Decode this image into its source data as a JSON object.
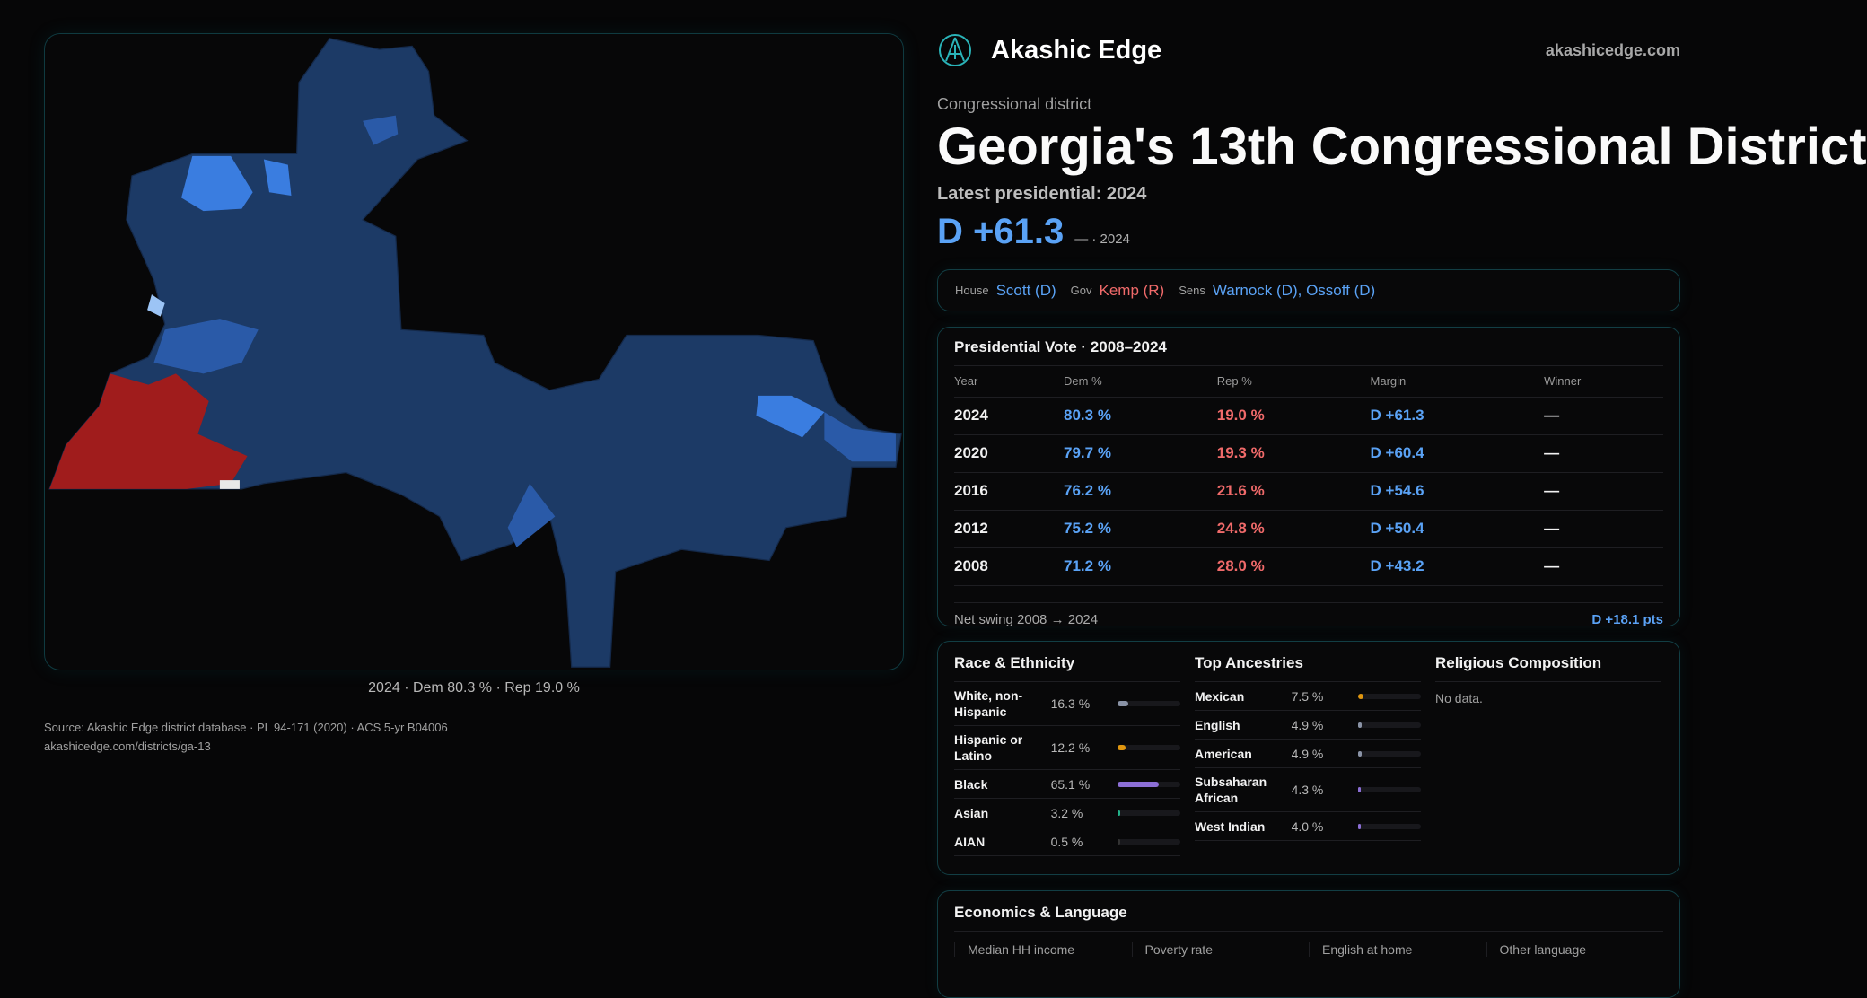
{
  "brand": {
    "name": "Akashic Edge",
    "site": "akashicedge.com",
    "logo_icon": "akashic-logo-icon"
  },
  "header": {
    "kicker": "Congressional district",
    "title": "Georgia's 13th Congressional District",
    "latest": "Latest presidential: 2024",
    "margin": "D +61.3",
    "margin_sub": "— · 2024"
  },
  "officials": [
    {
      "label": "House",
      "value": "Scott (D)",
      "party": "D"
    },
    {
      "label": "Gov",
      "value": "Kemp (R)",
      "party": "R"
    },
    {
      "label": "Sens",
      "value": "Warnock (D), Ossoff (D)",
      "party": "D"
    }
  ],
  "presidential": {
    "title": "Presidential Vote · 2008–2024",
    "headers": [
      "Year",
      "Dem %",
      "Rep %",
      "Margin",
      "Winner"
    ],
    "rows": [
      [
        "2024",
        "80.3 %",
        "19.0 %",
        "D +61.3",
        "—"
      ],
      [
        "2020",
        "79.7 %",
        "19.3 %",
        "D +60.4",
        "—"
      ],
      [
        "2016",
        "76.2 %",
        "21.6 %",
        "D +54.6",
        "—"
      ],
      [
        "2012",
        "75.2 %",
        "24.8 %",
        "D +50.4",
        "—"
      ],
      [
        "2008",
        "71.2 %",
        "28.0 %",
        "D +43.2",
        "—"
      ]
    ],
    "swing_label": "Net swing 2008 → 2024",
    "swing_value": "D +18.1 pts"
  },
  "race": {
    "title": "Race & Ethnicity",
    "items": [
      {
        "name": "White, non-Hispanic",
        "pct": "16.3 %",
        "value": 16.3,
        "color": "#8a93a6"
      },
      {
        "name": "Hispanic or Latino",
        "pct": "12.2 %",
        "value": 12.2,
        "color": "#e0960f"
      },
      {
        "name": "Black",
        "pct": "65.1 %",
        "value": 65.1,
        "color": "#8c6fd6"
      },
      {
        "name": "Asian",
        "pct": "3.2 %",
        "value": 3.2,
        "color": "#22b38a"
      },
      {
        "name": "AIAN",
        "pct": "0.5 %",
        "value": 0.5,
        "color": "#333"
      }
    ]
  },
  "ancestry": {
    "title": "Top Ancestries",
    "items": [
      {
        "name": "Mexican",
        "pct": "7.5 %",
        "value": 7.5,
        "color": "#e0960f"
      },
      {
        "name": "English",
        "pct": "4.9 %",
        "value": 4.9,
        "color": "#8a93a6"
      },
      {
        "name": "American",
        "pct": "4.9 %",
        "value": 4.9,
        "color": "#8a93a6"
      },
      {
        "name": "Subsaharan African",
        "pct": "4.3 %",
        "value": 4.3,
        "color": "#8c6fd6"
      },
      {
        "name": "West Indian",
        "pct": "4.0 %",
        "value": 4.0,
        "color": "#8c6fd6"
      }
    ]
  },
  "religion": {
    "title": "Religious Composition",
    "empty": "No data."
  },
  "economics": {
    "title": "Economics & Language",
    "metrics": [
      "Median HH income",
      "Poverty rate",
      "English at home",
      "Other language"
    ]
  },
  "footer": {
    "source": "Source: Akashic Edge district database · PL 94-171 (2020) · ACS 5-yr B04006",
    "url": "akashicedge.com/districts/ga-13"
  },
  "map": {
    "caption": "2024 · Dem 80.3 % · Rep 19.0 %",
    "colors": {
      "dem_strong": "#1c3a66",
      "dem_mid": "#2a5aa8",
      "dem_light": "#3a7de0",
      "rep": "#a01c1c"
    }
  }
}
